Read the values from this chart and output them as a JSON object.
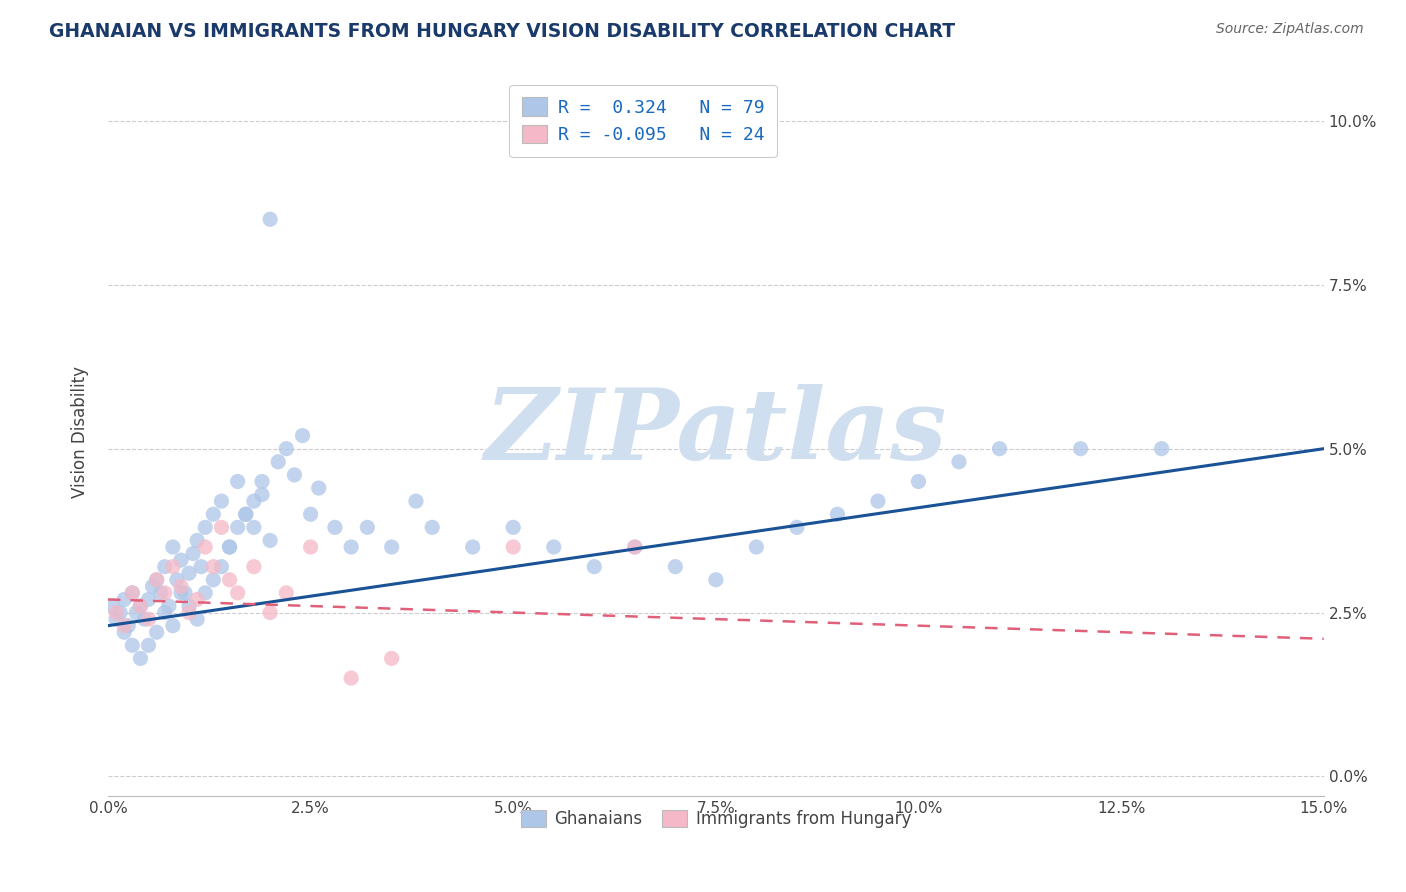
{
  "title": "GHANAIAN VS IMMIGRANTS FROM HUNGARY VISION DISABILITY CORRELATION CHART",
  "source": "Source: ZipAtlas.com",
  "ylabel": "Vision Disability",
  "xlabel_ticks": [
    "0.0%",
    "2.5%",
    "5.0%",
    "7.5%",
    "10.0%",
    "12.5%",
    "15.0%"
  ],
  "xlabel_vals": [
    0.0,
    2.5,
    5.0,
    7.5,
    10.0,
    12.5,
    15.0
  ],
  "ylabel_ticks": [
    "0.0%",
    "2.5%",
    "5.0%",
    "7.5%",
    "10.0%"
  ],
  "ylabel_vals": [
    0.0,
    2.5,
    5.0,
    7.5,
    10.0
  ],
  "xlim": [
    0.0,
    15.0
  ],
  "ylim": [
    -0.3,
    10.8
  ],
  "r_blue": 0.324,
  "n_blue": 79,
  "r_pink": -0.095,
  "n_pink": 24,
  "legend_labels": [
    "Ghanaians",
    "Immigrants from Hungary"
  ],
  "blue_color": "#aec6e8",
  "pink_color": "#f4b8c8",
  "blue_line_color": "#1a5296",
  "pink_line_color": "#e0607a",
  "watermark": "ZIPatlas",
  "watermark_color": "#d0dff0",
  "title_color": "#1a3a6b",
  "source_color": "#666666",
  "legend_r_color": "#1a6abf",
  "blue_line_start_y": 2.3,
  "blue_line_end_y": 5.0,
  "pink_line_start_y": 2.7,
  "pink_line_end_y": 2.1,
  "ghanaian_x": [
    0.05,
    0.1,
    0.15,
    0.2,
    0.25,
    0.3,
    0.35,
    0.4,
    0.45,
    0.5,
    0.55,
    0.6,
    0.65,
    0.7,
    0.75,
    0.8,
    0.85,
    0.9,
    0.95,
    1.0,
    1.05,
    1.1,
    1.15,
    1.2,
    1.3,
    1.4,
    1.5,
    1.6,
    1.7,
    1.8,
    1.9,
    2.0,
    2.1,
    2.2,
    2.3,
    2.4,
    2.5,
    2.6,
    2.8,
    3.0,
    3.2,
    3.5,
    3.8,
    4.0,
    4.5,
    5.0,
    5.5,
    6.0,
    6.5,
    7.0,
    7.5,
    8.0,
    8.5,
    9.0,
    9.5,
    10.0,
    10.5,
    11.0,
    12.0,
    13.0,
    0.2,
    0.3,
    0.4,
    0.5,
    0.6,
    0.7,
    0.8,
    0.9,
    1.0,
    1.1,
    1.2,
    1.3,
    1.4,
    1.5,
    1.6,
    1.7,
    1.8,
    1.9,
    2.0
  ],
  "ghanaian_y": [
    2.6,
    2.4,
    2.5,
    2.7,
    2.3,
    2.8,
    2.5,
    2.6,
    2.4,
    2.7,
    2.9,
    3.0,
    2.8,
    3.2,
    2.6,
    3.5,
    3.0,
    3.3,
    2.8,
    3.1,
    3.4,
    3.6,
    3.2,
    3.8,
    4.0,
    4.2,
    3.5,
    4.5,
    4.0,
    3.8,
    4.3,
    3.6,
    4.8,
    5.0,
    4.6,
    5.2,
    4.0,
    4.4,
    3.8,
    3.5,
    3.8,
    3.5,
    4.2,
    3.8,
    3.5,
    3.8,
    3.5,
    3.2,
    3.5,
    3.2,
    3.0,
    3.5,
    3.8,
    4.0,
    4.2,
    4.5,
    4.8,
    5.0,
    5.0,
    5.0,
    2.2,
    2.0,
    1.8,
    2.0,
    2.2,
    2.5,
    2.3,
    2.8,
    2.6,
    2.4,
    2.8,
    3.0,
    3.2,
    3.5,
    3.8,
    4.0,
    4.2,
    4.5,
    8.5
  ],
  "hungary_x": [
    0.1,
    0.2,
    0.3,
    0.4,
    0.5,
    0.6,
    0.7,
    0.8,
    0.9,
    1.0,
    1.1,
    1.2,
    1.3,
    1.4,
    1.5,
    1.6,
    1.8,
    2.0,
    2.2,
    2.5,
    3.0,
    3.5,
    5.0,
    6.5
  ],
  "hungary_y": [
    2.5,
    2.3,
    2.8,
    2.6,
    2.4,
    3.0,
    2.8,
    3.2,
    2.9,
    2.5,
    2.7,
    3.5,
    3.2,
    3.8,
    3.0,
    2.8,
    3.2,
    2.5,
    2.8,
    3.5,
    1.5,
    1.8,
    3.5,
    3.5
  ]
}
